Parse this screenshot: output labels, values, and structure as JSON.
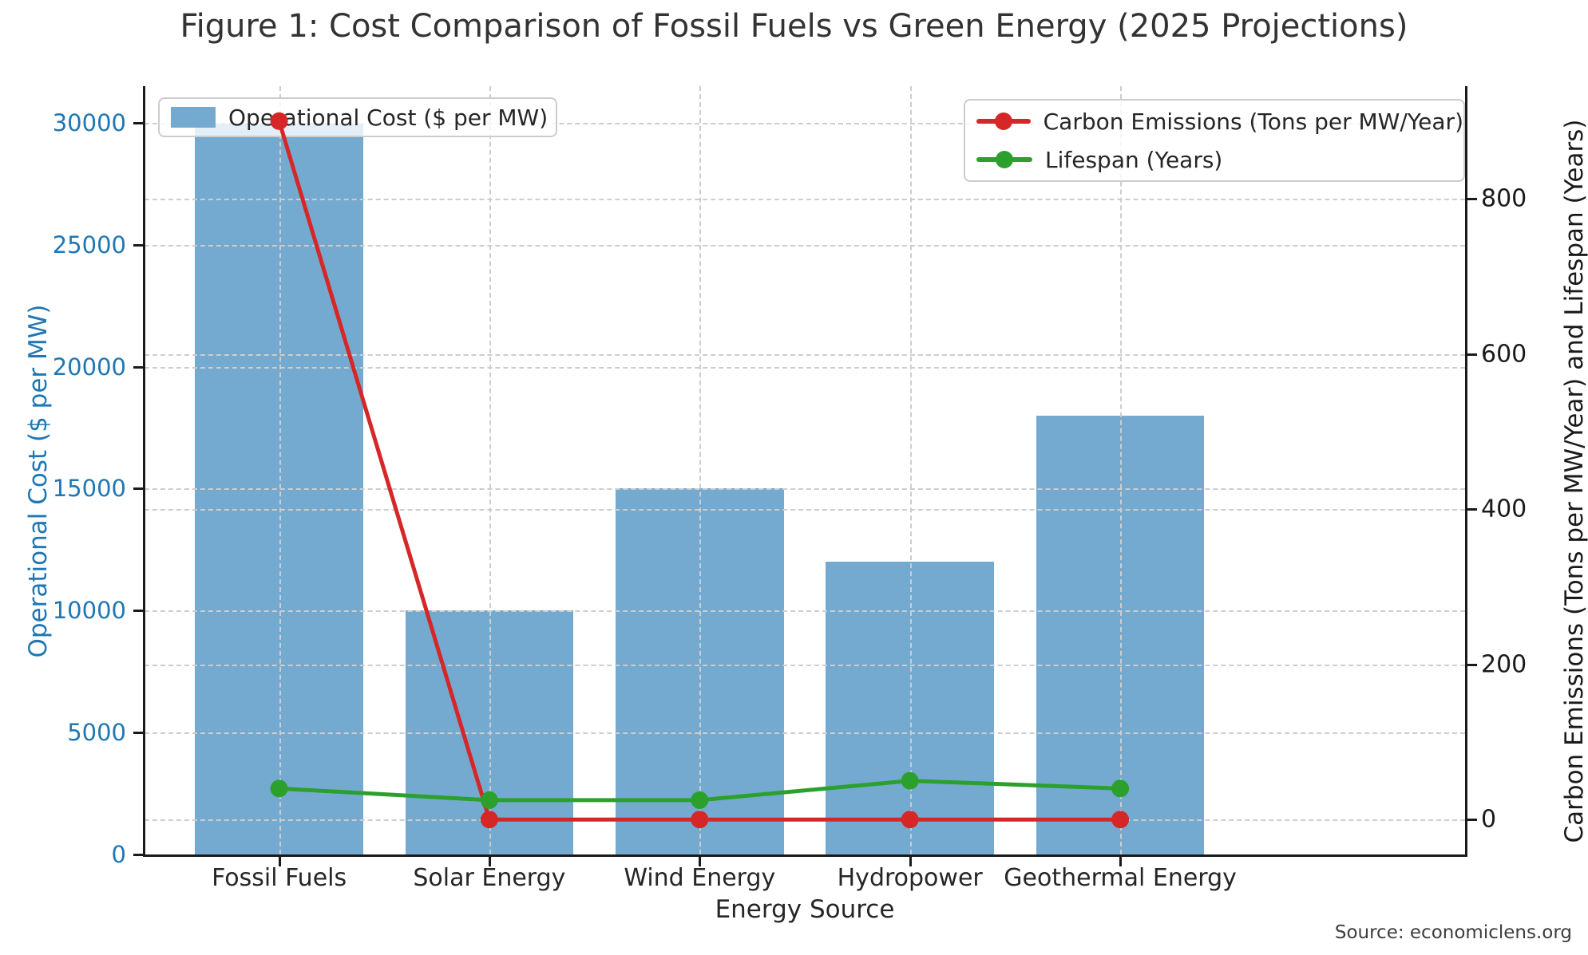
{
  "title": "Figure 1: Cost Comparison of Fossil Fuels vs Green Energy (2025 Projections)",
  "source": "Source: economiclens.org",
  "chart_data": {
    "type": "bar",
    "subtype": "bar+line dual axis",
    "categories": [
      "Fossil Fuels",
      "Solar Energy",
      "Wind Energy",
      "Hydropower",
      "Geothermal Energy"
    ],
    "series": [
      {
        "name": "Operational Cost ($ per MW)",
        "type": "bar",
        "axis": "left",
        "color": "#74aad0",
        "values": [
          30000,
          10000,
          15000,
          12000,
          18000
        ]
      },
      {
        "name": "Carbon Emissions (Tons per MW/Year)",
        "type": "line",
        "axis": "right",
        "color": "#d62728",
        "values": [
          900,
          0,
          0,
          0,
          0
        ]
      },
      {
        "name": "Lifespan (Years)",
        "type": "line",
        "axis": "right",
        "color": "#2ca02c",
        "values": [
          40,
          25,
          25,
          50,
          40
        ]
      }
    ],
    "xlabel": "Energy Source",
    "ylabel_left": "Operational Cost ($ per MW)",
    "ylabel_right": "Carbon Emissions (Tons per MW/Year) and Lifespan (Years)",
    "left_axis": {
      "ticks": [
        0,
        5000,
        10000,
        15000,
        20000,
        25000,
        30000
      ],
      "lim": [
        0,
        31500
      ],
      "color": "#1f77b4"
    },
    "right_axis": {
      "ticks": [
        0,
        200,
        400,
        600,
        800
      ],
      "lim": [
        -45,
        945
      ],
      "color": "#1a1a1a"
    },
    "grid": true,
    "legend_left_position": "upper left",
    "legend_right_position": "upper right"
  }
}
